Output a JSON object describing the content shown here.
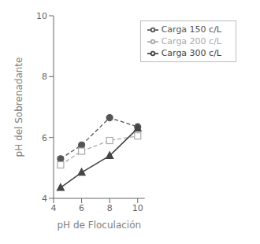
{
  "chart_data": {
    "type": "line",
    "x": [
      4.5,
      6,
      8,
      10
    ],
    "series": [
      {
        "name": "Carga 150 c/L",
        "color": "#555555",
        "values": [
          5.3,
          5.75,
          6.65,
          6.35
        ],
        "marker": "circle",
        "line_style": "dashed"
      },
      {
        "name": "Carga 200 c/L",
        "color": "#aaaaaa",
        "values": [
          5.1,
          5.55,
          5.9,
          6.05
        ],
        "marker": "hollow-square",
        "line_style": "dashed"
      },
      {
        "name": "Carga 300 c/L",
        "color": "#444444",
        "values": [
          4.35,
          4.85,
          5.4,
          6.3
        ],
        "marker": "triangle",
        "line_style": "solid"
      }
    ],
    "x_label": "pH de Floculación",
    "y_label": "pH del  Sobrenadante",
    "xlim": [
      4,
      10.5
    ],
    "ylim": [
      4,
      10
    ],
    "xticks": [
      4,
      6,
      8,
      10
    ],
    "yticks": [
      4,
      6,
      8,
      10
    ],
    "legend": "upper right",
    "grid": false
  }
}
